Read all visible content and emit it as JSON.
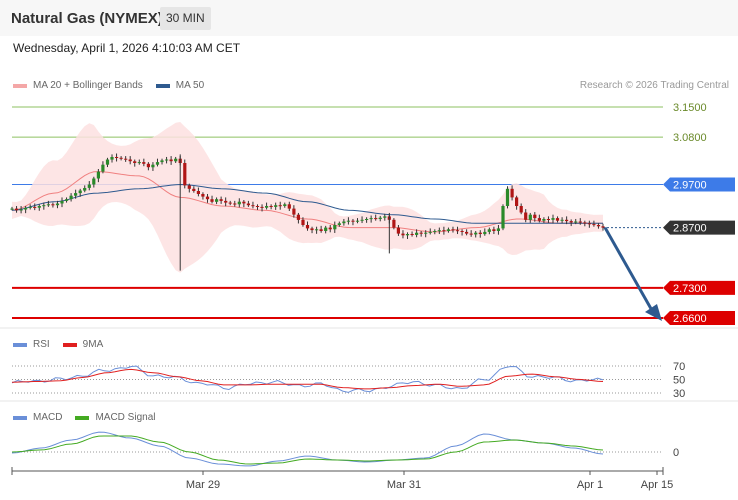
{
  "header": {
    "title": "Natural Gas (NYMEX)",
    "timeframe": "30 MIN"
  },
  "date_line": "Wednesday, April 1, 2026 4:10:03 AM CET",
  "credit": "Research © 2026 Trading Central",
  "legend": {
    "main": [
      {
        "label": "MA 20 + Bollinger Bands",
        "color": "#f4a7a7"
      },
      {
        "label": "MA 50",
        "color": "#2e5a8f"
      }
    ],
    "rsi": [
      {
        "label": "RSI",
        "color": "#6a8fd8"
      },
      {
        "label": "9MA",
        "color": "#e02020"
      }
    ],
    "macd": [
      {
        "label": "MACD",
        "color": "#6a8fd8"
      },
      {
        "label": "MACD Signal",
        "color": "#44aa22"
      }
    ]
  },
  "colors": {
    "resistance": "#8dc060",
    "pivot": "#3d7be8",
    "support": "#dd0000",
    "last": "#333333",
    "arrow": "#2e5a8f"
  },
  "chart_data": [
    {
      "type": "candlestick",
      "title": "Natural Gas (NYMEX)",
      "x_ticks": [
        "Mar 29",
        "Mar 31",
        "Apr 1",
        "Apr 15"
      ],
      "ylim": [
        2.62,
        3.17
      ],
      "price_levels": [
        {
          "label": "3.1500",
          "value": 3.15,
          "kind": "resistance"
        },
        {
          "label": "3.0800",
          "value": 3.08,
          "kind": "resistance"
        },
        {
          "label": "2.9700",
          "value": 2.97,
          "kind": "pivot"
        },
        {
          "label": "2.8700",
          "value": 2.87,
          "kind": "last"
        },
        {
          "label": "2.7300",
          "value": 2.73,
          "kind": "support"
        },
        {
          "label": "2.6600",
          "value": 2.66,
          "kind": "support"
        }
      ],
      "close": [
        2.914,
        2.91,
        2.912,
        2.916,
        2.918,
        2.916,
        2.92,
        2.922,
        2.924,
        2.922,
        2.926,
        2.932,
        2.936,
        2.944,
        2.95,
        2.956,
        2.962,
        2.97,
        2.984,
        3.0,
        3.016,
        3.028,
        3.034,
        3.032,
        3.03,
        3.028,
        3.024,
        3.02,
        3.022,
        3.018,
        3.01,
        3.016,
        3.022,
        3.026,
        3.028,
        3.024,
        3.03,
        3.02,
        2.968,
        2.96,
        2.955,
        2.948,
        2.942,
        2.936,
        2.93,
        2.936,
        2.932,
        2.928,
        2.926,
        2.924,
        2.93,
        2.926,
        2.922,
        2.92,
        2.918,
        2.916,
        2.92,
        2.918,
        2.922,
        2.92,
        2.924,
        2.914,
        2.9,
        2.888,
        2.876,
        2.868,
        2.864,
        2.866,
        2.862,
        2.87,
        2.866,
        2.876,
        2.88,
        2.884,
        2.886,
        2.884,
        2.886,
        2.888,
        2.89,
        2.892,
        2.89,
        2.893,
        2.896,
        2.888,
        2.87,
        2.856,
        2.852,
        2.855,
        2.853,
        2.858,
        2.856,
        2.858,
        2.86,
        2.862,
        2.864,
        2.862,
        2.866,
        2.864,
        2.862,
        2.86,
        2.856,
        2.854,
        2.858,
        2.855,
        2.86,
        2.866,
        2.862,
        2.868,
        2.92,
        2.96,
        2.94,
        2.92,
        2.905,
        2.888,
        2.9,
        2.892,
        2.886,
        2.89,
        2.888,
        2.892,
        2.886,
        2.888,
        2.885,
        2.882,
        2.884,
        2.882,
        2.88,
        2.878,
        2.876,
        2.873,
        2.87
      ],
      "series": [
        {
          "name": "MA 20 + Bollinger Bands",
          "values": [
            2.91,
            2.95,
            3.0,
            2.99,
            2.94,
            2.92,
            2.91,
            2.89,
            2.87,
            2.87,
            2.86,
            2.87,
            2.89,
            2.88,
            2.88
          ]
        },
        {
          "name": "MA 50",
          "values": [
            2.91,
            2.93,
            2.95,
            2.96,
            2.97,
            2.96,
            2.95,
            2.93,
            2.91,
            2.9,
            2.89,
            2.88,
            2.88,
            2.88,
            2.88
          ]
        }
      ],
      "forecast": {
        "from": 2.87,
        "to": 2.66
      }
    },
    {
      "type": "line",
      "title": "RSI",
      "y_ticks": [
        "70",
        "50",
        "30"
      ],
      "ylim": [
        20,
        80
      ],
      "series": [
        {
          "name": "RSI",
          "values": [
            45,
            48,
            50,
            56,
            64,
            69,
            56,
            52,
            44,
            38,
            43,
            47,
            41,
            43,
            34,
            33,
            40,
            47,
            40,
            37,
            50,
            70,
            55,
            52,
            48,
            50
          ]
        },
        {
          "name": "9MA",
          "values": [
            46,
            47,
            48,
            53,
            60,
            65,
            60,
            54,
            48,
            42,
            42,
            43,
            43,
            43,
            38,
            36,
            38,
            41,
            43,
            40,
            42,
            55,
            58,
            54,
            50,
            47
          ]
        }
      ]
    },
    {
      "type": "line",
      "title": "MACD",
      "y_ticks": [
        "0"
      ],
      "ylim": [
        -0.05,
        0.05
      ],
      "series": [
        {
          "name": "MACD",
          "values": [
            -0.001,
            0.004,
            0.012,
            0.02,
            0.014,
            0.006,
            -0.006,
            -0.012,
            -0.014,
            -0.009,
            -0.004,
            -0.008,
            -0.01,
            -0.008,
            -0.006,
            0.006,
            0.018,
            0.012,
            0.009,
            0.004,
            -0.002
          ]
        },
        {
          "name": "MACD Signal",
          "values": [
            0.0,
            0.002,
            0.008,
            0.016,
            0.016,
            0.01,
            0.0,
            -0.008,
            -0.012,
            -0.011,
            -0.007,
            -0.008,
            -0.009,
            -0.008,
            -0.007,
            0.0,
            0.01,
            0.012,
            0.009,
            0.006,
            0.002
          ]
        }
      ]
    }
  ]
}
